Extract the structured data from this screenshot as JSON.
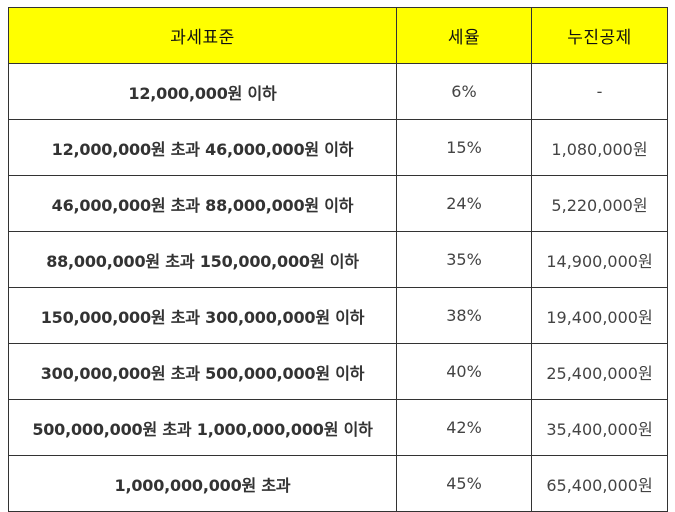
{
  "table": {
    "headers": [
      "과세표준",
      "세율",
      "누진공제"
    ],
    "rows": [
      {
        "bracket": "12,000,000원 이하",
        "rate": "6%",
        "deduction": "-"
      },
      {
        "bracket": "12,000,000원 초과 46,000,000원 이하",
        "rate": "15%",
        "deduction": "1,080,000원"
      },
      {
        "bracket": "46,000,000원 초과 88,000,000원 이하",
        "rate": "24%",
        "deduction": "5,220,000원"
      },
      {
        "bracket": "88,000,000원 초과 150,000,000원 이하",
        "rate": "35%",
        "deduction": "14,900,000원"
      },
      {
        "bracket": "150,000,000원 초과 300,000,000원 이하",
        "rate": "38%",
        "deduction": "19,400,000원"
      },
      {
        "bracket": "300,000,000원 초과 500,000,000원 이하",
        "rate": "40%",
        "deduction": "25,400,000원"
      },
      {
        "bracket": "500,000,000원 초과 1,000,000,000원 이하",
        "rate": "42%",
        "deduction": "35,400,000원"
      },
      {
        "bracket": "1,000,000,000원 초과",
        "rate": "45%",
        "deduction": "65,400,000원"
      }
    ],
    "header_color": "#ffff00",
    "border_color": "#333333"
  }
}
